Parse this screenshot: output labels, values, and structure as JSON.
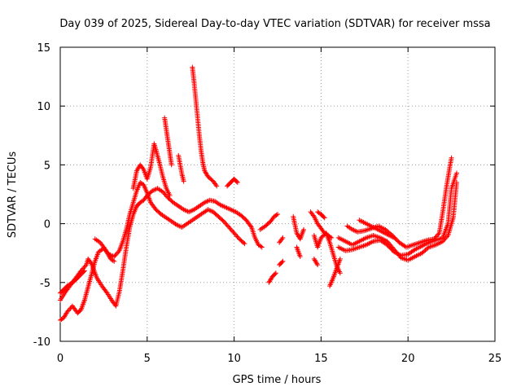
{
  "chart_data": {
    "type": "scatter",
    "title": "Day 039 of 2025, Sidereal Day-to-day VTEC variation (SDTVAR) for receiver mssa",
    "xlabel": "GPS time / hours",
    "ylabel": "SDTVAR / TECUs",
    "xlim": [
      0,
      25
    ],
    "ylim": [
      -10,
      15
    ],
    "xticks": [
      "0",
      "5",
      "10",
      "15",
      "20",
      "25"
    ],
    "yticks": [
      "-10",
      "-5",
      "0",
      "5",
      "10",
      "15"
    ],
    "grid": true,
    "marker": "+",
    "series": [
      {
        "name": "SDTVAR",
        "color": "#ff0000",
        "traces": [
          [
            [
              0.0,
              -6.5
            ],
            [
              0.3,
              -5.8
            ],
            [
              0.6,
              -5.2
            ],
            [
              0.9,
              -4.6
            ],
            [
              1.2,
              -4.0
            ],
            [
              1.5,
              -3.5
            ],
            [
              1.6,
              -3.0
            ],
            [
              1.8,
              -3.4
            ],
            [
              2.1,
              -4.6
            ],
            [
              2.4,
              -5.3
            ],
            [
              2.7,
              -5.9
            ],
            [
              3.0,
              -6.6
            ],
            [
              3.2,
              -7.0
            ],
            [
              3.4,
              -5.8
            ],
            [
              3.6,
              -4.0
            ],
            [
              3.8,
              -2.0
            ],
            [
              4.0,
              -0.3
            ],
            [
              4.2,
              0.8
            ],
            [
              4.4,
              1.5
            ],
            [
              4.6,
              1.8
            ],
            [
              4.8,
              2.0
            ],
            [
              5.0,
              2.4
            ],
            [
              5.3,
              2.8
            ],
            [
              5.6,
              3.0
            ],
            [
              5.9,
              2.7
            ],
            [
              6.2,
              2.2
            ],
            [
              6.5,
              1.8
            ],
            [
              6.8,
              1.5
            ],
            [
              7.1,
              1.2
            ],
            [
              7.4,
              1.0
            ],
            [
              7.7,
              1.2
            ],
            [
              8.0,
              1.5
            ],
            [
              8.3,
              1.8
            ],
            [
              8.6,
              2.0
            ],
            [
              8.9,
              1.9
            ],
            [
              9.2,
              1.6
            ],
            [
              9.5,
              1.4
            ],
            [
              9.8,
              1.2
            ],
            [
              10.1,
              1.0
            ],
            [
              10.4,
              0.7
            ],
            [
              10.7,
              0.3
            ],
            [
              11.0,
              -0.3
            ],
            [
              11.2,
              -1.2
            ],
            [
              11.4,
              -1.8
            ],
            [
              11.6,
              -2.0
            ]
          ],
          [
            [
              0.0,
              -8.2
            ],
            [
              0.2,
              -8.0
            ],
            [
              0.4,
              -7.5
            ],
            [
              0.7,
              -7.0
            ],
            [
              1.0,
              -7.6
            ],
            [
              1.2,
              -7.3
            ],
            [
              1.4,
              -6.5
            ],
            [
              1.6,
              -5.4
            ],
            [
              1.8,
              -4.3
            ],
            [
              2.0,
              -3.2
            ],
            [
              2.2,
              -2.4
            ],
            [
              2.5,
              -2.1
            ],
            [
              2.8,
              -2.6
            ],
            [
              3.1,
              -2.8
            ],
            [
              3.4,
              -2.3
            ],
            [
              3.6,
              -1.5
            ],
            [
              3.8,
              -0.5
            ],
            [
              4.0,
              0.8
            ],
            [
              4.2,
              1.8
            ],
            [
              4.4,
              2.8
            ],
            [
              4.6,
              3.5
            ],
            [
              4.8,
              3.3
            ],
            [
              5.0,
              2.6
            ],
            [
              5.2,
              1.8
            ],
            [
              5.5,
              1.2
            ],
            [
              5.8,
              0.8
            ],
            [
              6.1,
              0.5
            ],
            [
              6.4,
              0.2
            ],
            [
              6.7,
              -0.1
            ],
            [
              7.0,
              -0.3
            ],
            [
              7.3,
              0.0
            ],
            [
              7.6,
              0.3
            ],
            [
              7.9,
              0.6
            ],
            [
              8.2,
              0.9
            ],
            [
              8.5,
              1.2
            ],
            [
              8.8,
              1.0
            ],
            [
              9.1,
              0.6
            ],
            [
              9.4,
              0.2
            ],
            [
              9.7,
              -0.3
            ],
            [
              10.0,
              -0.8
            ],
            [
              10.3,
              -1.3
            ],
            [
              10.6,
              -1.7
            ]
          ],
          [
            [
              0.0,
              -5.9
            ],
            [
              0.2,
              -5.6
            ],
            [
              0.4,
              -5.3
            ],
            [
              0.6,
              -5.1
            ],
            [
              0.8,
              -4.9
            ],
            [
              1.0,
              -4.6
            ],
            [
              1.2,
              -4.3
            ],
            [
              1.4,
              -4.0
            ]
          ],
          [
            [
              2.0,
              -1.3
            ],
            [
              2.3,
              -1.6
            ],
            [
              2.6,
              -2.2
            ],
            [
              2.9,
              -3.0
            ],
            [
              3.1,
              -3.2
            ]
          ],
          [
            [
              4.2,
              3.0
            ],
            [
              4.4,
              4.5
            ],
            [
              4.6,
              5.0
            ],
            [
              4.8,
              4.6
            ],
            [
              5.0,
              3.8
            ],
            [
              5.2,
              4.8
            ],
            [
              5.4,
              6.8
            ],
            [
              5.5,
              6.3
            ],
            [
              5.7,
              5.2
            ],
            [
              5.9,
              4.0
            ],
            [
              6.1,
              3.0
            ],
            [
              6.3,
              2.4
            ]
          ],
          [
            [
              6.0,
              9.0
            ],
            [
              6.1,
              8.0
            ],
            [
              6.2,
              7.0
            ],
            [
              6.3,
              6.0
            ],
            [
              6.4,
              5.0
            ]
          ],
          [
            [
              7.6,
              13.3
            ],
            [
              7.7,
              12.0
            ],
            [
              7.8,
              10.5
            ],
            [
              7.9,
              9.0
            ],
            [
              8.0,
              7.5
            ],
            [
              8.1,
              6.2
            ],
            [
              8.2,
              5.2
            ],
            [
              8.3,
              4.5
            ],
            [
              8.5,
              4.0
            ],
            [
              8.8,
              3.6
            ],
            [
              9.0,
              3.2
            ]
          ],
          [
            [
              6.8,
              5.8
            ],
            [
              6.9,
              5.0
            ],
            [
              7.0,
              4.2
            ],
            [
              7.1,
              3.6
            ]
          ],
          [
            [
              9.6,
              3.2
            ],
            [
              9.8,
              3.5
            ],
            [
              10.0,
              3.8
            ],
            [
              10.2,
              3.5
            ]
          ],
          [
            [
              11.5,
              -0.5
            ],
            [
              11.8,
              -0.2
            ],
            [
              12.1,
              0.2
            ],
            [
              12.3,
              0.6
            ],
            [
              12.5,
              0.8
            ]
          ],
          [
            [
              12.0,
              -5.0
            ],
            [
              12.2,
              -4.5
            ],
            [
              12.4,
              -4.2
            ]
          ],
          [
            [
              12.6,
              -3.5
            ],
            [
              12.8,
              -3.2
            ]
          ],
          [
            [
              12.6,
              -1.6
            ],
            [
              12.8,
              -1.2
            ]
          ],
          [
            [
              13.4,
              0.6
            ],
            [
              13.6,
              -0.8
            ],
            [
              13.8,
              -1.3
            ],
            [
              14.0,
              -0.5
            ]
          ],
          [
            [
              13.6,
              -2.0
            ],
            [
              13.8,
              -2.8
            ]
          ],
          [
            [
              14.4,
              1.0
            ],
            [
              14.6,
              0.6
            ],
            [
              14.8,
              0.0
            ],
            [
              15.0,
              -0.4
            ],
            [
              15.2,
              -0.8
            ],
            [
              15.4,
              -1.0
            ],
            [
              15.6,
              -1.2
            ]
          ],
          [
            [
              14.6,
              -1.0
            ],
            [
              14.8,
              -2.0
            ],
            [
              15.0,
              -1.2
            ],
            [
              15.3,
              -0.8
            ],
            [
              15.5,
              -1.6
            ],
            [
              15.7,
              -2.6
            ],
            [
              15.9,
              -3.6
            ],
            [
              16.1,
              -4.2
            ]
          ],
          [
            [
              14.6,
              -3.0
            ],
            [
              14.8,
              -3.5
            ]
          ],
          [
            [
              14.8,
              1.0
            ],
            [
              15.0,
              0.8
            ],
            [
              15.2,
              0.5
            ]
          ],
          [
            [
              15.5,
              -5.3
            ],
            [
              15.7,
              -4.6
            ],
            [
              15.9,
              -3.8
            ],
            [
              16.1,
              -3.0
            ]
          ],
          [
            [
              16.0,
              -1.2
            ],
            [
              16.4,
              -1.5
            ],
            [
              16.8,
              -1.8
            ],
            [
              17.2,
              -1.5
            ],
            [
              17.6,
              -1.2
            ],
            [
              18.0,
              -1.0
            ],
            [
              18.4,
              -1.2
            ],
            [
              18.8,
              -1.5
            ],
            [
              19.2,
              -2.2
            ],
            [
              19.6,
              -2.9
            ],
            [
              20.0,
              -3.1
            ],
            [
              20.4,
              -2.8
            ],
            [
              20.8,
              -2.5
            ],
            [
              21.2,
              -2.0
            ],
            [
              21.6,
              -1.8
            ],
            [
              22.0,
              -1.5
            ],
            [
              22.3,
              -1.0
            ],
            [
              22.6,
              0.5
            ],
            [
              22.8,
              3.5
            ]
          ],
          [
            [
              16.0,
              -2.0
            ],
            [
              16.4,
              -2.3
            ],
            [
              16.8,
              -2.2
            ],
            [
              17.2,
              -2.0
            ],
            [
              17.6,
              -1.8
            ],
            [
              18.0,
              -1.5
            ],
            [
              18.4,
              -1.4
            ],
            [
              18.8,
              -1.8
            ],
            [
              19.2,
              -2.4
            ],
            [
              19.6,
              -2.7
            ],
            [
              20.0,
              -2.6
            ],
            [
              20.4,
              -2.2
            ],
            [
              20.8,
              -1.9
            ],
            [
              21.2,
              -1.6
            ],
            [
              21.6,
              -1.4
            ],
            [
              22.0,
              -1.2
            ],
            [
              22.3,
              0.0
            ],
            [
              22.5,
              3.0
            ],
            [
              22.8,
              4.3
            ]
          ],
          [
            [
              16.5,
              -0.2
            ],
            [
              16.8,
              -0.5
            ],
            [
              17.1,
              -0.7
            ],
            [
              17.5,
              -0.6
            ],
            [
              17.9,
              -0.4
            ],
            [
              18.3,
              -0.2
            ],
            [
              18.7,
              -0.5
            ],
            [
              19.1,
              -1.0
            ],
            [
              19.5,
              -1.6
            ],
            [
              19.9,
              -2.0
            ],
            [
              20.3,
              -1.8
            ],
            [
              20.7,
              -1.6
            ],
            [
              21.1,
              -1.4
            ],
            [
              21.5,
              -1.3
            ],
            [
              21.8,
              -0.8
            ],
            [
              22.0,
              1.0
            ],
            [
              22.2,
              3.0
            ],
            [
              22.4,
              4.8
            ],
            [
              22.5,
              5.6
            ]
          ],
          [
            [
              17.2,
              0.3
            ],
            [
              17.6,
              0.0
            ],
            [
              18.0,
              -0.3
            ],
            [
              18.4,
              -0.6
            ],
            [
              18.8,
              -0.9
            ],
            [
              19.2,
              -1.2
            ]
          ]
        ]
      }
    ]
  }
}
